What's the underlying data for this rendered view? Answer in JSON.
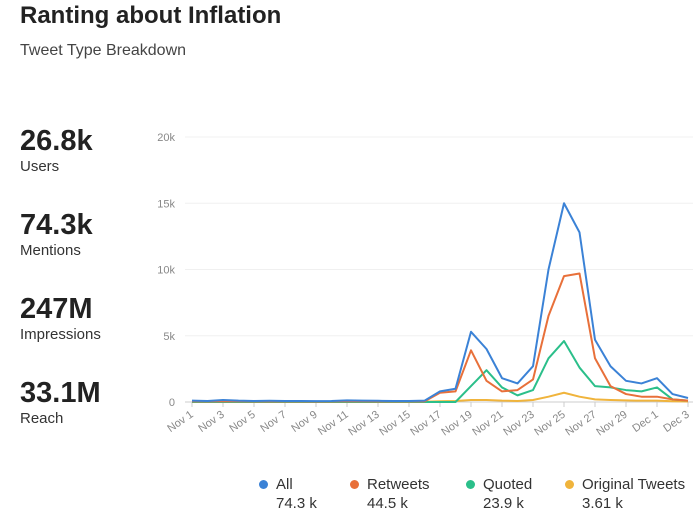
{
  "title": "Ranting about Inflation",
  "subtitle": "Tweet Type Breakdown",
  "stats": [
    {
      "value": "26.8k",
      "label": "Users"
    },
    {
      "value": "74.3k",
      "label": "Mentions"
    },
    {
      "value": "247M",
      "label": "Impressions"
    },
    {
      "value": "33.1M",
      "label": "Reach"
    }
  ],
  "chart_data": {
    "type": "line",
    "yticks": [
      "0",
      "5k",
      "10k",
      "15k",
      "20k"
    ],
    "ylim": [
      0,
      20000
    ],
    "grid": true,
    "legend_position": "bottom",
    "xtick_labels": [
      "Nov 1",
      "Nov 3",
      "Nov 5",
      "Nov 7",
      "Nov 9",
      "Nov 11",
      "Nov 13",
      "Nov 15",
      "Nov 17",
      "Nov 19",
      "Nov 21",
      "Nov 23",
      "Nov 25",
      "Nov 27",
      "Nov 29",
      "Dec 1",
      "Dec 3"
    ],
    "series": [
      {
        "name": "All",
        "total": "74.3 k",
        "color": "#3b82d6",
        "values": [
          100,
          80,
          150,
          100,
          80,
          90,
          80,
          80,
          70,
          80,
          120,
          100,
          90,
          80,
          80,
          100,
          800,
          1000,
          5300,
          4000,
          1800,
          1400,
          2700,
          10000,
          15000,
          12800,
          4700,
          2700,
          1600,
          1400,
          1800,
          600,
          300
        ]
      },
      {
        "name": "Retweets",
        "total": "44.5 k",
        "color": "#e8703a",
        "values": [
          50,
          40,
          60,
          50,
          40,
          40,
          40,
          40,
          30,
          40,
          60,
          50,
          40,
          40,
          40,
          50,
          700,
          800,
          3900,
          1600,
          800,
          900,
          1700,
          6500,
          9500,
          9700,
          3300,
          1200,
          600,
          400,
          400,
          200,
          100
        ]
      },
      {
        "name": "Quoted",
        "total": "23.9 k",
        "color": "#2bbf8a",
        "values": [
          0,
          0,
          0,
          0,
          0,
          0,
          0,
          0,
          0,
          0,
          0,
          0,
          0,
          0,
          0,
          0,
          0,
          0,
          1200,
          2400,
          1100,
          500,
          900,
          3300,
          4600,
          2600,
          1200,
          1100,
          900,
          800,
          1100,
          200,
          100
        ]
      },
      {
        "name": "Original Tweets",
        "total": "3.61 k",
        "color": "#f0b43c",
        "values": [
          20,
          20,
          30,
          20,
          20,
          20,
          20,
          20,
          20,
          20,
          30,
          20,
          20,
          20,
          20,
          20,
          60,
          80,
          150,
          150,
          100,
          80,
          150,
          400,
          700,
          400,
          200,
          150,
          120,
          100,
          100,
          60,
          40
        ]
      }
    ]
  }
}
